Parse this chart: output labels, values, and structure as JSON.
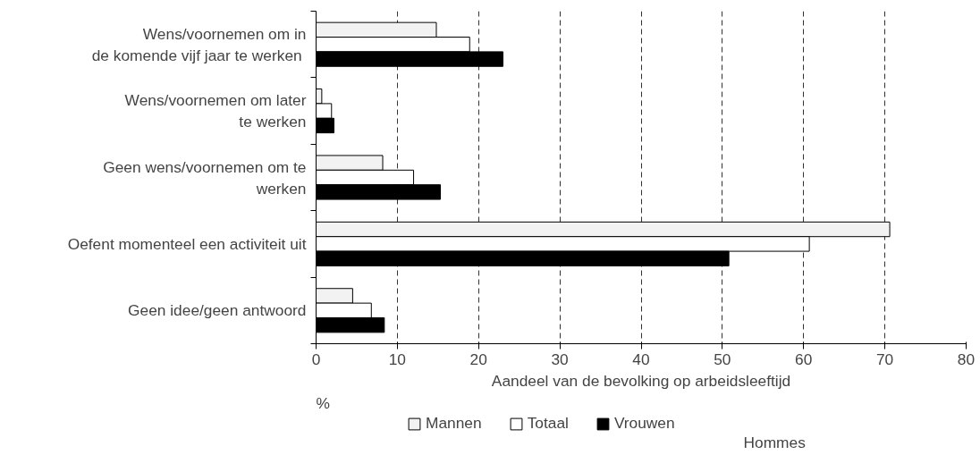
{
  "chart_data": {
    "type": "bar",
    "orientation": "horizontal",
    "categories": [
      "Wens/voornemen om in\nde komende vijf jaar te  werken",
      "Wens/voornemen om later\nte werken",
      "Geen wens/voornemen om te\nwerken",
      "Oefent momenteel een activiteit uit",
      "Geen idee/geen antwoord"
    ],
    "series": [
      {
        "name": "Mannen",
        "color": "#f2f2f2",
        "values": [
          14.8,
          0.7,
          8.2,
          70.6,
          4.5
        ]
      },
      {
        "name": "Totaal",
        "color": "#ffffff",
        "values": [
          18.9,
          1.9,
          12.0,
          60.7,
          6.8
        ]
      },
      {
        "name": "Vrouwen",
        "color": "#000000",
        "values": [
          23.0,
          2.2,
          15.3,
          50.8,
          8.4
        ]
      }
    ],
    "xlabel": "Aandeel van de bevolking op arbeidsleeftijd",
    "xlim": [
      0,
      80
    ],
    "xticks": [
      0,
      10,
      20,
      30,
      40,
      50,
      60,
      70,
      80
    ],
    "grid": "x",
    "legend": "bottom",
    "annotations": [
      "%",
      "Hommes"
    ]
  }
}
